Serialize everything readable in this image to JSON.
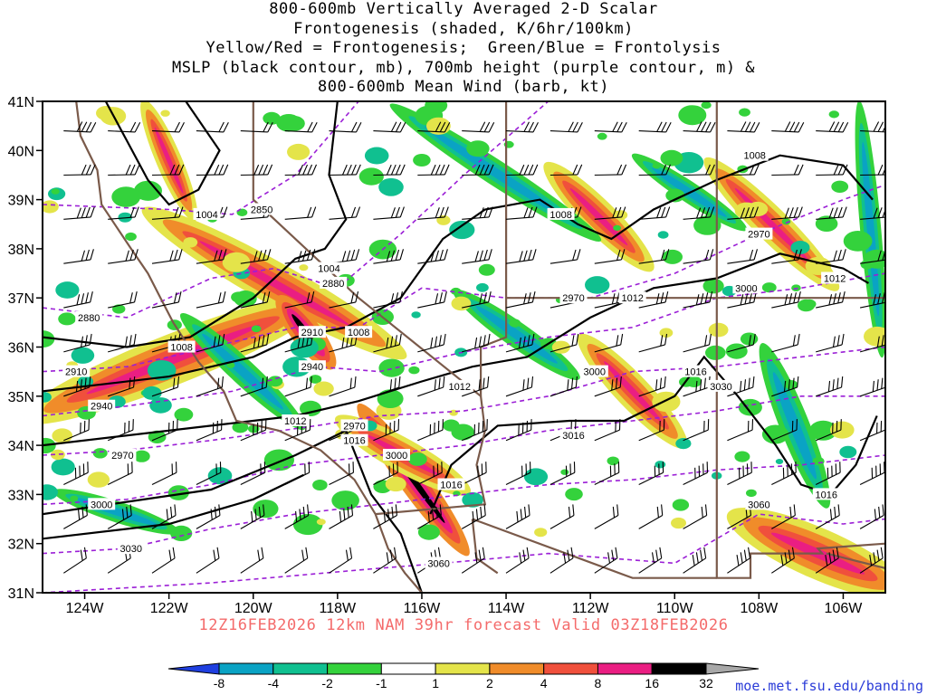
{
  "title_lines": [
    "800-600mb Vertically Averaged 2-D Scalar",
    "Frontogenesis (shaded, K/6hr/100km)",
    "Yellow/Red = Frontogenesis;  Green/Blue = Frontolysis",
    "MSLP (black contour, mb), 700mb height (purple contour, m) &",
    "800-600mb Mean Wind (barb, kt)"
  ],
  "valid_line": "12Z16FEB2026 12km NAM 39hr forecast Valid 03Z18FEB2026",
  "credit": "moe.met.fsu.edu/banding",
  "colors": {
    "mslp": "#000000",
    "height": "#9b1fd6",
    "border": "#7a5a4a",
    "valid_text": "#f46b6b",
    "credit_text": "#2a3bd8"
  },
  "map": {
    "lon_range": [
      -125,
      -105
    ],
    "lat_range": [
      31,
      41
    ],
    "lon_ticks": [
      "124W",
      "122W",
      "120W",
      "118W",
      "116W",
      "114W",
      "112W",
      "110W",
      "108W",
      "106W"
    ],
    "lat_ticks": [
      "31N",
      "32N",
      "33N",
      "34N",
      "35N",
      "36N",
      "37N",
      "38N",
      "39N",
      "40N",
      "41N"
    ],
    "mslp_labels": [
      {
        "text": "1004",
        "lon": -121.1,
        "lat": 38.7
      },
      {
        "text": "1004",
        "lon": -118.2,
        "lat": 37.6
      },
      {
        "text": "1008",
        "lon": -121.7,
        "lat": 36.0
      },
      {
        "text": "1008",
        "lon": -117.5,
        "lat": 36.3
      },
      {
        "text": "1012",
        "lon": -119.0,
        "lat": 34.5
      },
      {
        "text": "1016",
        "lon": -117.6,
        "lat": 34.1
      },
      {
        "text": "1012",
        "lon": -115.1,
        "lat": 35.2
      },
      {
        "text": "1008",
        "lon": -112.7,
        "lat": 38.7
      },
      {
        "text": "1012",
        "lon": -111.0,
        "lat": 37.0
      },
      {
        "text": "1016",
        "lon": -115.3,
        "lat": 33.2
      },
      {
        "text": "1008",
        "lon": -108.1,
        "lat": 39.9
      },
      {
        "text": "1012",
        "lon": -106.2,
        "lat": 37.4
      },
      {
        "text": "1016",
        "lon": -109.5,
        "lat": 35.5
      },
      {
        "text": "1016",
        "lon": -106.4,
        "lat": 33.0
      }
    ],
    "height_labels": [
      {
        "text": "2850",
        "lon": -119.8,
        "lat": 38.8
      },
      {
        "text": "2880",
        "lon": -118.1,
        "lat": 37.3
      },
      {
        "text": "2880",
        "lon": -123.9,
        "lat": 36.6
      },
      {
        "text": "2910",
        "lon": -118.6,
        "lat": 36.3
      },
      {
        "text": "2910",
        "lon": -124.2,
        "lat": 35.5
      },
      {
        "text": "2940",
        "lon": -118.6,
        "lat": 35.6
      },
      {
        "text": "2940",
        "lon": -123.6,
        "lat": 34.8
      },
      {
        "text": "2970",
        "lon": -117.6,
        "lat": 34.4
      },
      {
        "text": "2970",
        "lon": -123.1,
        "lat": 33.8
      },
      {
        "text": "3000",
        "lon": -116.6,
        "lat": 33.8
      },
      {
        "text": "3000",
        "lon": -123.6,
        "lat": 32.8
      },
      {
        "text": "3030",
        "lon": -122.9,
        "lat": 31.9
      },
      {
        "text": "3060",
        "lon": -115.6,
        "lat": 31.6
      },
      {
        "text": "2970",
        "lon": -112.4,
        "lat": 37.0
      },
      {
        "text": "3000",
        "lon": -111.9,
        "lat": 35.5
      },
      {
        "text": "3016",
        "lon": -112.4,
        "lat": 34.2
      },
      {
        "text": "2970",
        "lon": -108.0,
        "lat": 38.3
      },
      {
        "text": "3000",
        "lon": -108.3,
        "lat": 37.2
      },
      {
        "text": "3030",
        "lon": -108.9,
        "lat": 35.2
      },
      {
        "text": "3060",
        "lon": -108.0,
        "lat": 32.8
      }
    ]
  },
  "legend": {
    "labels": [
      "-8",
      "-4",
      "-2",
      "-1",
      "1",
      "2",
      "4",
      "8",
      "16",
      "32"
    ],
    "colors": [
      "#1f3fe0",
      "#0aa3c4",
      "#10c090",
      "#34d23c",
      "#ffffff",
      "#e4e44a",
      "#f08c2a",
      "#f0503c",
      "#ea1e82",
      "#000000",
      "#a8a8a8"
    ]
  }
}
